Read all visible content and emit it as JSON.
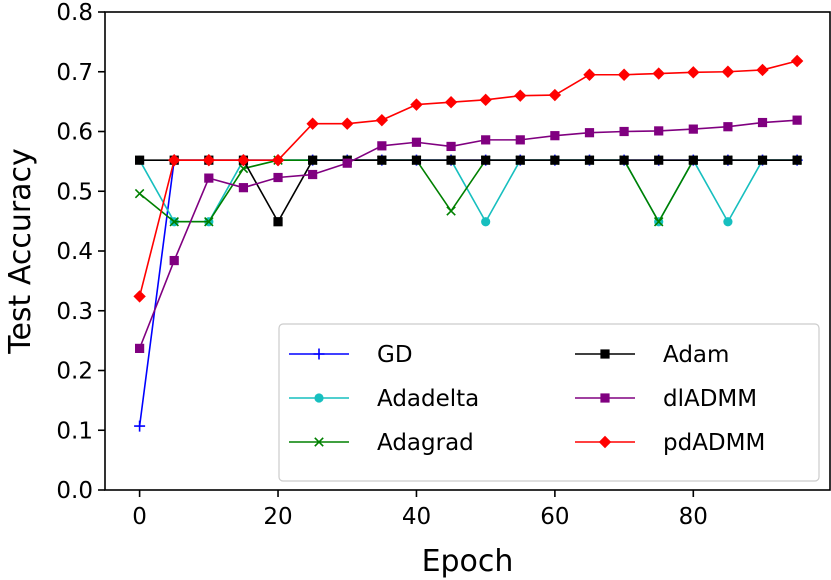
{
  "chart_data": {
    "type": "line",
    "title": "",
    "xlabel": "Epoch",
    "ylabel": "Test Accuracy",
    "xlim": [
      -5,
      99.75
    ],
    "ylim": [
      0.0,
      0.8
    ],
    "xticks": [
      0,
      20,
      40,
      60,
      80
    ],
    "xtick_labels": [
      "0",
      "20",
      "40",
      "60",
      "80"
    ],
    "yticks": [
      0.0,
      0.1,
      0.2,
      0.3,
      0.4,
      0.5,
      0.6,
      0.7,
      0.8
    ],
    "ytick_labels": [
      "0.0",
      "0.1",
      "0.2",
      "0.3",
      "0.4",
      "0.5",
      "0.6",
      "0.7",
      "0.8"
    ],
    "grid": false,
    "legend_position": "lower-right",
    "x": [
      0,
      5,
      10,
      15,
      20,
      25,
      30,
      35,
      40,
      45,
      50,
      55,
      60,
      65,
      70,
      75,
      80,
      85,
      90,
      95
    ],
    "series": [
      {
        "name": "GD",
        "color": "#0000ff",
        "marker": "plus",
        "values": [
          0.107,
          0.552,
          0.552,
          0.552,
          0.552,
          0.552,
          0.552,
          0.552,
          0.552,
          0.552,
          0.552,
          0.552,
          0.552,
          0.552,
          0.552,
          0.552,
          0.552,
          0.552,
          0.552,
          0.552
        ]
      },
      {
        "name": "Adadelta",
        "color": "#17bfbf",
        "marker": "circle",
        "values": [
          0.552,
          0.449,
          0.449,
          0.552,
          0.552,
          0.552,
          0.552,
          0.552,
          0.552,
          0.552,
          0.449,
          0.552,
          0.552,
          0.552,
          0.552,
          0.449,
          0.552,
          0.449,
          0.552,
          0.552
        ]
      },
      {
        "name": "Adagrad",
        "color": "#008000",
        "marker": "x",
        "values": [
          0.496,
          0.449,
          0.449,
          0.538,
          0.552,
          0.552,
          0.552,
          0.552,
          0.552,
          0.467,
          0.552,
          0.552,
          0.552,
          0.552,
          0.552,
          0.449,
          0.552,
          0.552,
          0.552,
          0.552
        ]
      },
      {
        "name": "Adam",
        "color": "#000000",
        "marker": "square",
        "values": [
          0.552,
          0.552,
          0.552,
          0.552,
          0.449,
          0.552,
          0.552,
          0.552,
          0.552,
          0.552,
          0.552,
          0.552,
          0.552,
          0.552,
          0.552,
          0.552,
          0.552,
          0.552,
          0.552,
          0.552
        ]
      },
      {
        "name": "dlADMM",
        "color": "#800080",
        "marker": "square",
        "values": [
          0.237,
          0.384,
          0.522,
          0.506,
          0.523,
          0.528,
          0.547,
          0.576,
          0.582,
          0.575,
          0.586,
          0.586,
          0.593,
          0.598,
          0.6,
          0.601,
          0.604,
          0.608,
          0.615,
          0.619
        ]
      },
      {
        "name": "pdADMM",
        "color": "#ff0000",
        "marker": "diamond",
        "values": [
          0.324,
          0.552,
          0.552,
          0.552,
          0.552,
          0.613,
          0.613,
          0.619,
          0.645,
          0.649,
          0.653,
          0.66,
          0.661,
          0.695,
          0.695,
          0.697,
          0.699,
          0.7,
          0.703,
          0.718
        ]
      }
    ]
  }
}
